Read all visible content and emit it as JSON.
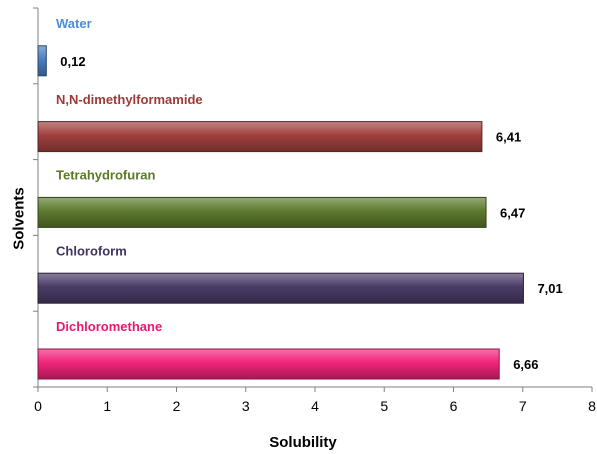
{
  "chart_data": {
    "type": "bar",
    "orientation": "horizontal",
    "categories": [
      "Water",
      "N,N-dimethylformamide",
      "Tetrahydrofuran",
      "Chloroform",
      "Dichloromethane"
    ],
    "values": [
      0.12,
      6.41,
      6.47,
      7.01,
      6.66
    ],
    "value_labels": [
      "0,12",
      "6,41",
      "6,47",
      "7,01",
      "6,66"
    ],
    "colors": [
      "#4a7fc0",
      "#a0403e",
      "#5e7a2e",
      "#4a3b66",
      "#f0247a"
    ],
    "label_colors": [
      "#4a8ed6",
      "#9b3b38",
      "#5a7a24",
      "#3f3560",
      "#e8196e"
    ],
    "xlabel": "Solubility",
    "ylabel": "Solvents",
    "xlim": [
      0,
      8
    ],
    "xticks": [
      "0",
      "1",
      "2",
      "3",
      "4",
      "5",
      "6",
      "7",
      "8"
    ],
    "grid": false,
    "legend": "none"
  }
}
